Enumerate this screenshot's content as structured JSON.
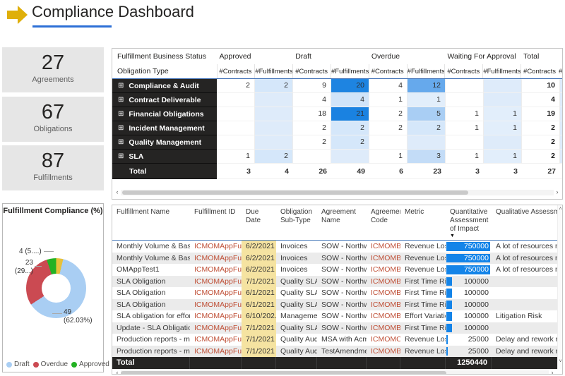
{
  "header": {
    "title": "Compliance Dashboard",
    "arrow_color": "#DFAF0A",
    "underline_color": "#2C6FD6"
  },
  "kpis": [
    {
      "value": "27",
      "label": "Agreements"
    },
    {
      "value": "67",
      "label": "Obligations"
    },
    {
      "value": "87",
      "label": "Fulfillments"
    }
  ],
  "donut": {
    "title": "Fulfillment Compliance (%)",
    "slices": [
      {
        "name": "Waiting For Approval",
        "pct": 3.8,
        "color": "#E7C13B"
      },
      {
        "name": "Draft",
        "value": 49,
        "pct": 62.03,
        "color": "#A9CEF3"
      },
      {
        "name": "Overdue",
        "value": 23,
        "pct": 29.11,
        "color": "#CB4A52"
      },
      {
        "name": "Approved",
        "value": 4,
        "pct": 5.06,
        "color": "#23B223"
      }
    ],
    "callouts": {
      "approved": "4 (5....)",
      "overdue_value": "23",
      "overdue_pct": "(29...)",
      "draft_value": "49",
      "draft_pct": "(62.03%)"
    },
    "legend": [
      {
        "label": "Draft",
        "color": "#A9CEF3"
      },
      {
        "label": "Overdue",
        "color": "#CB4A52"
      },
      {
        "label": "Approved",
        "color": "#23B223"
      }
    ]
  },
  "chart_data": {
    "type": "pie",
    "title": "Fulfillment Compliance (%)",
    "categories": [
      "Draft",
      "Overdue",
      "Approved",
      "Waiting For Approval"
    ],
    "values": [
      49,
      23,
      4,
      3
    ],
    "percents": [
      62.03,
      29.11,
      5.06,
      3.8
    ],
    "legend_position": "bottom"
  },
  "matrix": {
    "corner_row1": "Fulfillment Business Status",
    "corner_row2": "Obligation Type",
    "groups": [
      "Approved",
      "Draft",
      "Overdue",
      "Waiting For Approval",
      "Total"
    ],
    "subheaders": [
      "#Contracts",
      "#Fulfillments",
      "#Contracts",
      "#Fulfillments",
      "#Contracts",
      "#Fulfillments",
      "#Contracts",
      "#Fulfillments",
      "#Contracts"
    ],
    "subheader_cut": "#F",
    "rows": [
      {
        "label": "Compliance & Audit",
        "cells": [
          {
            "v": "2"
          },
          {
            "v": "2",
            "bg": "#D5E7FA"
          },
          {
            "v": "9"
          },
          {
            "v": "20",
            "bg": "#1E84E1"
          },
          {
            "v": "4"
          },
          {
            "v": "12",
            "bg": "#66A9EC"
          },
          {
            "v": ""
          },
          {
            "v": "",
            "bg": "#DEEBFA"
          },
          {
            "v": "10"
          }
        ]
      },
      {
        "label": "Contract Deliverable",
        "cells": [
          {
            "v": ""
          },
          {
            "v": "",
            "bg": "#DEEBFA"
          },
          {
            "v": "4"
          },
          {
            "v": "4",
            "bg": "#D0E4F9"
          },
          {
            "v": "1"
          },
          {
            "v": "1",
            "bg": "#E2EEFB"
          },
          {
            "v": ""
          },
          {
            "v": "",
            "bg": "#DEEBFA"
          },
          {
            "v": "4"
          }
        ]
      },
      {
        "label": "Financial Obligations",
        "cells": [
          {
            "v": ""
          },
          {
            "v": "",
            "bg": "#DEEBFA"
          },
          {
            "v": "18"
          },
          {
            "v": "21",
            "bg": "#1A82E1"
          },
          {
            "v": "2"
          },
          {
            "v": "5",
            "bg": "#A9CEF4"
          },
          {
            "v": "1"
          },
          {
            "v": "1",
            "bg": "#E2EEFB"
          },
          {
            "v": "19"
          }
        ]
      },
      {
        "label": "Incident Management",
        "cells": [
          {
            "v": ""
          },
          {
            "v": "",
            "bg": "#DEEBFA"
          },
          {
            "v": "2"
          },
          {
            "v": "2",
            "bg": "#D5E7FA"
          },
          {
            "v": "2"
          },
          {
            "v": "2",
            "bg": "#D5E7FA"
          },
          {
            "v": "1"
          },
          {
            "v": "1",
            "bg": "#E2EEFB"
          },
          {
            "v": "2"
          }
        ]
      },
      {
        "label": "Quality Management",
        "cells": [
          {
            "v": ""
          },
          {
            "v": "",
            "bg": "#DEEBFA"
          },
          {
            "v": "2"
          },
          {
            "v": "2",
            "bg": "#D5E7FA"
          },
          {
            "v": ""
          },
          {
            "v": "",
            "bg": "#DEEBFA"
          },
          {
            "v": ""
          },
          {
            "v": "",
            "bg": "#DEEBFA"
          },
          {
            "v": "2"
          }
        ]
      },
      {
        "label": "SLA",
        "cells": [
          {
            "v": "1"
          },
          {
            "v": "2",
            "bg": "#D5E7FA"
          },
          {
            "v": ""
          },
          {
            "v": "",
            "bg": "#DEEBFA"
          },
          {
            "v": "1"
          },
          {
            "v": "3",
            "bg": "#C3DCF7"
          },
          {
            "v": "1"
          },
          {
            "v": "1",
            "bg": "#E2EEFB"
          },
          {
            "v": "2"
          }
        ]
      }
    ],
    "total": {
      "label": "Total",
      "cells": [
        "3",
        "4",
        "26",
        "49",
        "6",
        "23",
        "3",
        "3",
        "27"
      ]
    }
  },
  "table": {
    "columns": [
      "Fulfillment Name",
      "Fulfillment ID",
      "Due Date",
      "Obligation Sub-Type",
      "Agreement Name",
      "Agreement Code",
      "Metric",
      "Quantitative Assessment of Impact",
      "Qualitative Assessment"
    ],
    "bar_max": 750000,
    "rows": [
      {
        "name": "Monthly Volume & Baseli...",
        "id": "ICMOMAppFulfi...",
        "due": "6/2/2021 ...",
        "subtype": "Invoices",
        "agreement": "SOW - Northw...",
        "code": "ICMOMB...",
        "metric": "Revenue Loss",
        "quant": 750000,
        "qual": "A lot of resources might"
      },
      {
        "name": "Monthly Volume & Baseli...",
        "id": "ICMOMAppFulfi...",
        "due": "6/2/2021 ...",
        "subtype": "Invoices",
        "agreement": "SOW - Northw...",
        "code": "ICMOMB...",
        "metric": "Revenue Loss",
        "quant": 750000,
        "qual": "A lot of resources might"
      },
      {
        "name": "OMAppTest1",
        "id": "ICMOMAppFulfi...",
        "due": "6/2/2021 ...",
        "subtype": "Invoices",
        "agreement": "SOW - Northw...",
        "code": "ICMOMB...",
        "metric": "Revenue Loss",
        "quant": 750000,
        "qual": "A lot of resources might"
      },
      {
        "name": "SLA Obligation",
        "id": "ICMOMAppFulfi...",
        "due": "7/1/2021 ...",
        "subtype": "Quality SLA",
        "agreement": "SOW - Northw...",
        "code": "ICMOMB...",
        "metric": "First Time Rig...",
        "quant": 100000,
        "qual": ""
      },
      {
        "name": "SLA Obligation",
        "id": "ICMOMAppFulfi...",
        "due": "6/1/2021 ...",
        "subtype": "Quality SLA",
        "agreement": "SOW - Northw...",
        "code": "ICMOMB...",
        "metric": "First Time Rig...",
        "quant": 100000,
        "qual": ""
      },
      {
        "name": "SLA Obligation",
        "id": "ICMOMAppFulfi...",
        "due": "6/1/2021 ...",
        "subtype": "Quality SLA",
        "agreement": "SOW - Northw...",
        "code": "ICMOMB...",
        "metric": "First Time Rig...",
        "quant": 100000,
        "qual": ""
      },
      {
        "name": "SLA obligation for effort ...",
        "id": "ICMOMAppFulfi...",
        "due": "6/10/202...",
        "subtype": "Manageme...",
        "agreement": "SOW - Northw...",
        "code": "ICMOMB...",
        "metric": "Effort Variation",
        "quant": 100000,
        "qual": "Litigation Risk"
      },
      {
        "name": "Update - SLA Obligation",
        "id": "ICMOMAppFulfi...",
        "due": "7/1/2021 ...",
        "subtype": "Quality SLA",
        "agreement": "SOW - Northw...",
        "code": "ICMOMB...",
        "metric": "First Time Rig...",
        "quant": 100000,
        "qual": ""
      },
      {
        "name": "Production reports - mon...",
        "id": "ICMOMAppFulfi...",
        "due": "7/1/2021 ...",
        "subtype": "Quality Audit",
        "agreement": "MSA with Acm...",
        "code": "ICMOMC...",
        "metric": "Revenue Loss",
        "quant": 25000,
        "qual": "Delay and rework risk"
      },
      {
        "name": "Production reports - mon...",
        "id": "ICMOMAppFulfi...",
        "due": "7/1/2021 ...",
        "subtype": "Quality Audit",
        "agreement": "TestAmendme...",
        "code": "ICMOMB...",
        "metric": "Revenue Loss",
        "quant": 25000,
        "qual": "Delay and rework risk"
      }
    ],
    "total_label": "Total",
    "total_value": "1250440"
  },
  "icons": {
    "expand": "⊞",
    "sort_desc": "▼",
    "legend_more": "▶",
    "scroll_left": "‹",
    "scroll_right": "›",
    "scroll_up": "˄",
    "scroll_down": "˅"
  },
  "colors": {
    "id_text": "#BF4E35",
    "due_highlight": "#F5E3A1",
    "data_bar": "#1484E8",
    "row_header_bg": "#252423",
    "kpi_bg": "#E6E6E6",
    "heat_dark": "#1A82E1",
    "heat_light": "#DEEBFA"
  }
}
